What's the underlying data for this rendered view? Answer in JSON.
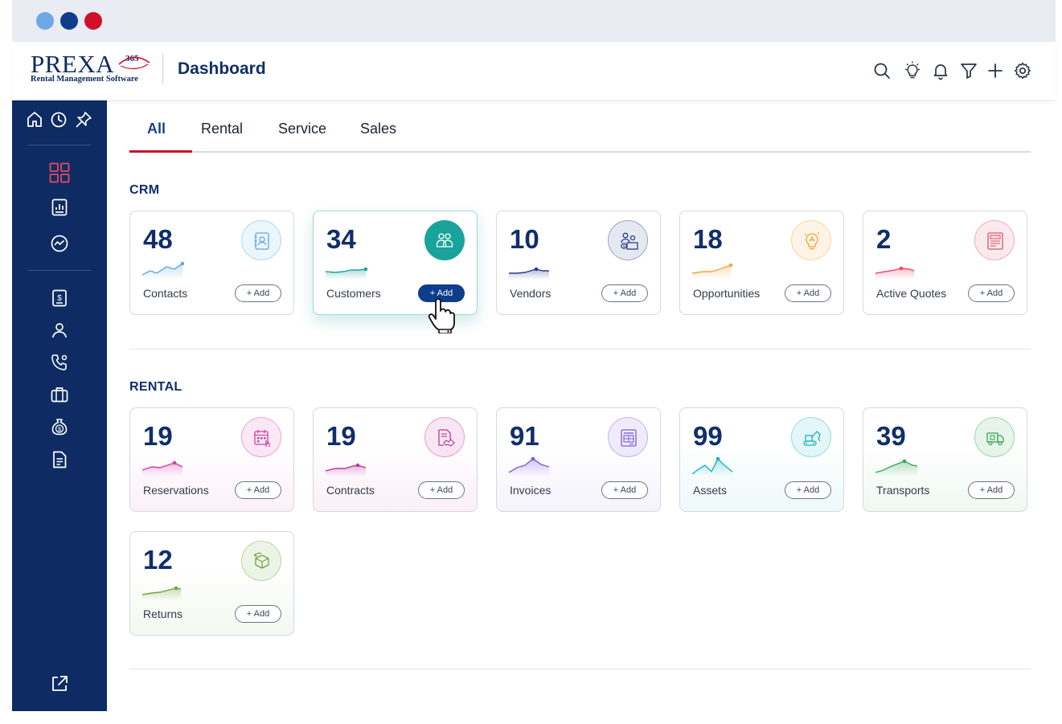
{
  "window": {
    "traffic_lights": [
      "#6fa8e6",
      "#0e3d8c",
      "#d0102a"
    ]
  },
  "header": {
    "logo_word": "PREXA",
    "logo_sup": "365",
    "logo_tagline": "Rental Management Software",
    "title": "Dashboard",
    "icons": [
      "search-icon",
      "lightbulb-icon",
      "bell-icon",
      "filter-icon",
      "plus-icon",
      "gear-icon"
    ]
  },
  "sidebar": {
    "top_icons": [
      "home-icon",
      "clock-icon",
      "pin-icon"
    ],
    "nav_icons": [
      "dashboard-grid-icon",
      "report-icon",
      "analytics-icon",
      "billing-icon",
      "user-icon",
      "phone-icon",
      "briefcase-icon",
      "money-icon",
      "document-icon"
    ],
    "bottom_icon": "external-link-icon",
    "active_color": "#e84a5f"
  },
  "tabs": [
    {
      "label": "All",
      "active": true
    },
    {
      "label": "Rental",
      "active": false
    },
    {
      "label": "Service",
      "active": false
    },
    {
      "label": "Sales",
      "active": false
    }
  ],
  "sections": {
    "crm": {
      "title": "CRM",
      "cards": [
        {
          "value": "48",
          "label": "Contacts",
          "add": "Add",
          "color": "#5aa9e6",
          "icon": "contacts-book-icon"
        },
        {
          "value": "34",
          "label": "Customers",
          "add": "Add",
          "color": "#1aa39a",
          "icon": "customers-group-icon"
        },
        {
          "value": "10",
          "label": "Vendors",
          "add": "Add",
          "color": "#2b3f8c",
          "icon": "vendor-icon"
        },
        {
          "value": "18",
          "label": "Opportunities",
          "add": "Add",
          "color": "#f0a73a",
          "icon": "opportunity-bulb-icon"
        },
        {
          "value": "2",
          "label": "Active Quotes",
          "add": "Add",
          "color": "#e0506b",
          "icon": "quotes-icon"
        }
      ]
    },
    "rental": {
      "title": "RENTAL",
      "cards": [
        {
          "value": "19",
          "label": "Reservations",
          "add": "Add",
          "color": "#d43fa8",
          "icon": "reservation-calendar-icon"
        },
        {
          "value": "19",
          "label": "Contracts",
          "add": "Add",
          "color": "#c2359a",
          "icon": "contract-handshake-icon"
        },
        {
          "value": "91",
          "label": "Invoices",
          "add": "Add",
          "color": "#7b5cd6",
          "icon": "invoice-icon"
        },
        {
          "value": "99",
          "label": "Assets",
          "add": "Add",
          "color": "#1fb1c2",
          "icon": "excavator-icon"
        },
        {
          "value": "39",
          "label": "Transports",
          "add": "Add",
          "color": "#3aa856",
          "icon": "truck-icon"
        },
        {
          "value": "12",
          "label": "Returns",
          "add": "Add",
          "color": "#6fa53c",
          "icon": "return-box-icon"
        }
      ]
    }
  }
}
